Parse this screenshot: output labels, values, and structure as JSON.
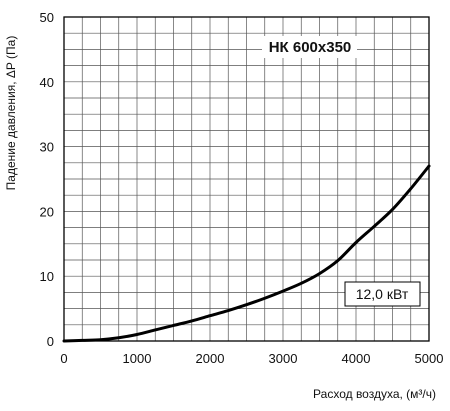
{
  "chart_data": {
    "type": "line",
    "title": "НК 600х350",
    "xlabel": "Расход воздуха, (м³/ч)",
    "ylabel": "Падение давления, ΔP (Па)",
    "xlim": [
      0,
      5000
    ],
    "ylim": [
      0,
      50
    ],
    "x_ticks": [
      "0",
      "1000",
      "2000",
      "3000",
      "4000",
      "5000"
    ],
    "y_ticks": [
      "0",
      "10",
      "20",
      "30",
      "40",
      "50"
    ],
    "grid": true,
    "annotation": "12,0 кВт",
    "series": [
      {
        "x": [
          0,
          250,
          500,
          750,
          1000,
          1250,
          1500,
          1750,
          2000,
          2250,
          2500,
          2750,
          3000,
          3250,
          3500,
          3750,
          4000,
          4250,
          4500,
          4750,
          5000
        ],
        "y": [
          0,
          0.1,
          0.2,
          0.5,
          1.0,
          1.7,
          2.4,
          3.1,
          3.9,
          4.7,
          5.6,
          6.6,
          7.7,
          8.9,
          10.4,
          12.4,
          15.2,
          17.7,
          20.3,
          23.5,
          27.0
        ]
      }
    ]
  }
}
